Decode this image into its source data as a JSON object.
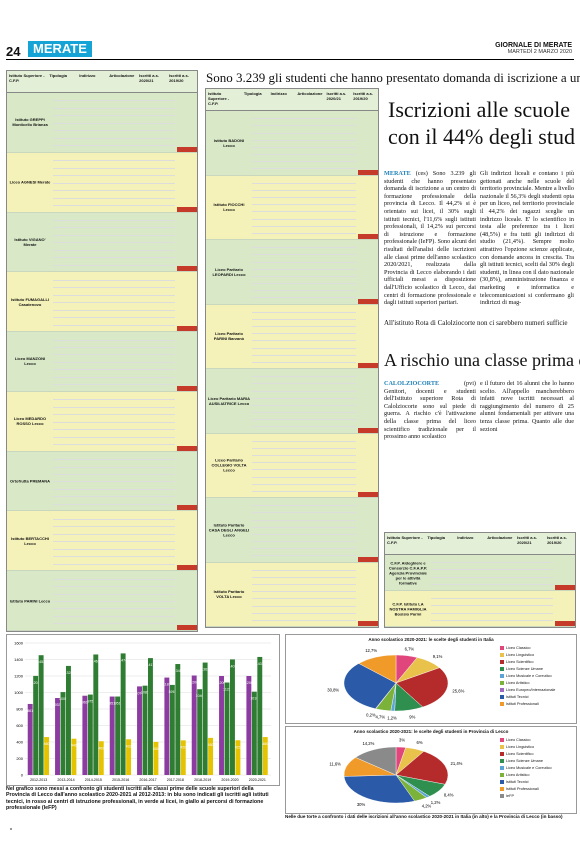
{
  "header": {
    "page_number": "24",
    "section": "MERATE",
    "paper": "GIORNALE DI MERATE",
    "date": "MARTEDÌ 2 MARZO 2020"
  },
  "article": {
    "kicker": "Sono 3.239 gli studenti che hanno presentato domanda di iscrizione a un i",
    "headline_line1": "Iscrizioni alle scuole",
    "headline_line2": "con il 44% degli stud",
    "lead_word": "MERATE",
    "col1": "(ces) Sono 3.239 gli studenti che hanno presentato domanda di iscrizione a un centro di formazione professionale della provincia di Lecco. Il 44,2% si è orientato sui licei, il 30% sugli istituti tecnici, l'11,6% sugli istituti professionali, il 14,2% sui percorsi di istruzione e formazione professionale (IeFP). Sono alcuni dei risultati dell'analisi delle iscrizioni alle classi prime dell'anno scolastico 2020/2021, realizzata dalla Provincia di Lecco elaborando i dati ufficiali messi a disposizione dall'Ufficio scolastico di Lecco, dai centri di formazione professionale e dagli istituti superiori paritari.",
    "col2": "Gli indirizzi liceali e contano i più gettonati anche nelle scuole del territorio provinciale. Mentre a livello nazionale il 56,3% degli studenti opta per un liceo, nel territorio provinciale il 44,2% dei ragazzi sceglie un indirizzo liceale. E' lo scientifico in testa alle preferenze tra i licei (48,5%) e fra tutti gli indirizzi di studio (21,4%). Sempre molto attrattivo l'opzione scienze applicate, con domande ancora in crescita. Tra gli istituti tecnici, scelti dal 30% degli studenti, in linea con il dato nazionale (30,8%), amministrazione finanza e marketing e informatica e telecomunicazioni si confermano gli indirizzi di mag-",
    "kicker2": "All'istituto Rota di Calolziocorte non ci sarebbero numeri sufficie",
    "headline2": "A rischio una classe prima de",
    "lead_word2": "CALOLZIOCORTE",
    "col3": "(pvi) Genitori, docenti e studenti dell'Istituto superiore Rota di Calolziocorte sono sul piede di guerra. A rischio c'è l'attivazione della classe prima del liceo scientifico tradizionale per il prossimo anno scolastico",
    "col4": "e il futuro dei 16 alunni che lo hanno scelto. All'appello mancherebbero infatti nove iscritti necessari al raggiungimento del numero di 25 alunni fondamentali per attivare una terza classe prima. Quanto alle due sezioni"
  },
  "tables": {
    "left_header": [
      "Istituto Superiore - C.F.P.",
      "Tipologia",
      "Indirizzo",
      "Articolazione",
      "Iscritti a.s. 2020/21",
      "Iscritti a.s. 2019/20"
    ],
    "schools_left": [
      "Istituto GREPPI Monticello Brianza",
      "Liceo AGNESI Merate",
      "Istituto VIGANO' Merate",
      "Istituto FUMAGALLI Casatenovo",
      "Liceo MANZONI Lecco",
      "Liceo MEDARDO ROSSO Lecco",
      "Ortofrutta PREMANA",
      "Istituto BERTACCHI Lecco",
      "Istituto PARINI Lecco"
    ],
    "schools_mid": [
      "Istituto BADONI Lecco",
      "Istituto FIOCCHI Lecco",
      "Liceo Paritario LEOPARDI Lecco",
      "Liceo Paritario PARINI Barzanò",
      "Liceo Paritario MARIA AUSILIATRICE Lecco",
      "Liceo Paritario COLLEGIO VOLTA Lecco",
      "Istituto Paritario CASA DEGLI ANGELI Lecco",
      "Istituto Paritario VOLTA Lecco"
    ],
    "schools_right": [
      "C.F.P. Aldeghiere e Consorzio C.F.A.P.P. Agenzia Provinciale per le attività formative",
      "C.F.P. Istituto LA NOSTRA FAMIGLIA Bosisio Parini"
    ]
  },
  "chart_data": [
    {
      "type": "bar",
      "title": "",
      "categories": [
        "2012-2013",
        "2013-2014",
        "2014-2015",
        "2015-2016",
        "2016-2017",
        "2017-2018",
        "2018-2019",
        "2019-2020",
        "2020-2021"
      ],
      "series": [
        {
          "name": "",
          "color": "#8c3ca0",
          "values": [
            861,
            933,
            961,
            951,
            1074,
            1181,
            1206,
            1200,
            1200
          ]
        },
        {
          "name": "",
          "color": "#2e7d32",
          "values": [
            1201,
            1005,
            975,
            951,
            1083,
            1092,
            1040,
            1121,
            1010
          ]
        },
        {
          "name": "",
          "color": "#2e7d32",
          "values": [
            1452,
            1322,
            1461,
            1474,
            1417,
            1345,
            1363,
            1401,
            1431
          ]
        },
        {
          "name": "",
          "color": "#e5c300",
          "values": [
            460,
            440,
            409,
            433,
            401,
            420,
            450,
            421,
            460
          ]
        }
      ],
      "caption": "Nel grafico sono messi a confronto gli studenti iscritti alle classi prime delle scuole superiori della Provincia di Lecco dall'anno scolastico 2020-2021 al 2012-2013: in blu sono indicati gli iscritti agli istituti tecnici, in rosso ai centri di istruzione professionali, in verde ai licei, in giallo ai percorsi di formazione professionale (IeFP)"
    },
    {
      "type": "pie",
      "title": "Anno scolastico 2020-2021: le scelte degli studenti in Italia",
      "categories": [
        "Liceo Classico",
        "Liceo Linguistico",
        "Liceo Scientifico",
        "Liceo Scienze Umane",
        "Liceo Musicale e Coreutico",
        "Liceo Artistico",
        "Liceo Europeo/Internazionale",
        "Istituti Tecnici",
        "Istituti Professionali"
      ],
      "values": [
        6.7,
        9.1,
        25.6,
        9.0,
        1.2,
        4.7,
        0.2,
        30.8,
        12.7
      ],
      "colors": [
        "#e0457b",
        "#e8c24a",
        "#b52a2a",
        "#2f8f4f",
        "#5aa4d8",
        "#7bb23a",
        "#9c6bc1",
        "#2a5aa8",
        "#f09a2a"
      ]
    },
    {
      "type": "pie",
      "title": "Anno scolastico 2020-2021: le scelte degli studenti in Provincia di Lecco",
      "categories": [
        "Liceo Classico",
        "Liceo Linguistico",
        "Liceo Scientifico",
        "Liceo Scienze Umane",
        "Liceo Musicale e Coreutico",
        "Liceo Artistico",
        "Istituti Tecnici",
        "Istituti Professionali",
        "IeFP"
      ],
      "values": [
        3.0,
        6.0,
        21.4,
        8.4,
        1.2,
        4.2,
        30.0,
        11.6,
        14.2
      ],
      "colors": [
        "#e0457b",
        "#e8c24a",
        "#b52a2a",
        "#2f8f4f",
        "#5aa4d8",
        "#7bb23a",
        "#2a5aa8",
        "#f09a2a",
        "#8a8a8a"
      ],
      "caption": "Nelle due torte a confronto i dati delle iscrizioni all'anno scolastico 2020-2021 in Italia (in alto) e la Provincia di Lecco (in basso)"
    }
  ]
}
